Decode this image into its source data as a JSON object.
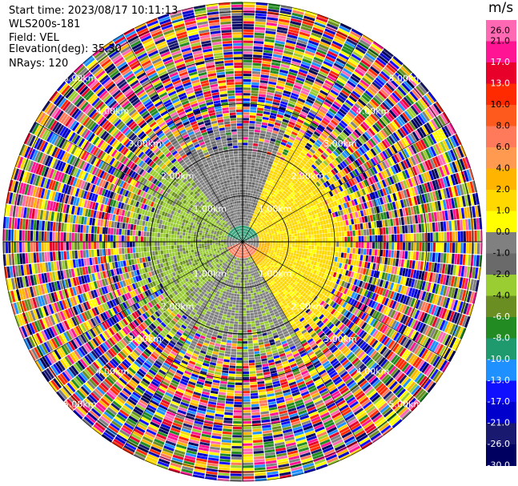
{
  "header": {
    "start_time": "Start time: 2023/08/17 10:11:13",
    "instrument": "WLS200s-181",
    "field": "Field: VEL",
    "elevation": "Elevation(deg): 35.30",
    "nrays": "NRays: 120"
  },
  "chart_data": {
    "type": "heatmap",
    "subtype": "polar-ppi",
    "field": "VEL",
    "units": "m/s",
    "range_rings_km": [
      1.0,
      2.0,
      3.0,
      4.0,
      5.0
    ],
    "ring_labels": [
      "1.00km",
      "2.00km",
      "3.00km",
      "4.00km",
      "5.00km"
    ],
    "max_range_km": 5.2,
    "n_rays": 120,
    "elevation_deg": 35.3,
    "colorbar": {
      "title": "m/s",
      "tick_labels": [
        "26.0",
        "21.0",
        "17.0",
        "13.0",
        "10.0",
        "8.0",
        "6.0",
        "4.0",
        "2.0",
        "1.0",
        "0.0",
        "-1.0",
        "-2.0",
        "-4.0",
        "-6.0",
        "-8.0",
        "-10.0",
        "-13.0",
        "-17.0",
        "-21.0",
        "-26.0",
        "-30.0"
      ],
      "colors": [
        "#ff69b4",
        "#ff1493",
        "#e8002a",
        "#ff2a00",
        "#ff5a1e",
        "#ff7a5a",
        "#ff9a50",
        "#ffb400",
        "#ffd800",
        "#ffff00",
        "#808080",
        "#6a6a6a",
        "#9acd32",
        "#6b8e23",
        "#228b22",
        "#1f9a6e",
        "#1e90ff",
        "#1010ff",
        "#0000cd",
        "#191970",
        "#000060"
      ]
    }
  }
}
